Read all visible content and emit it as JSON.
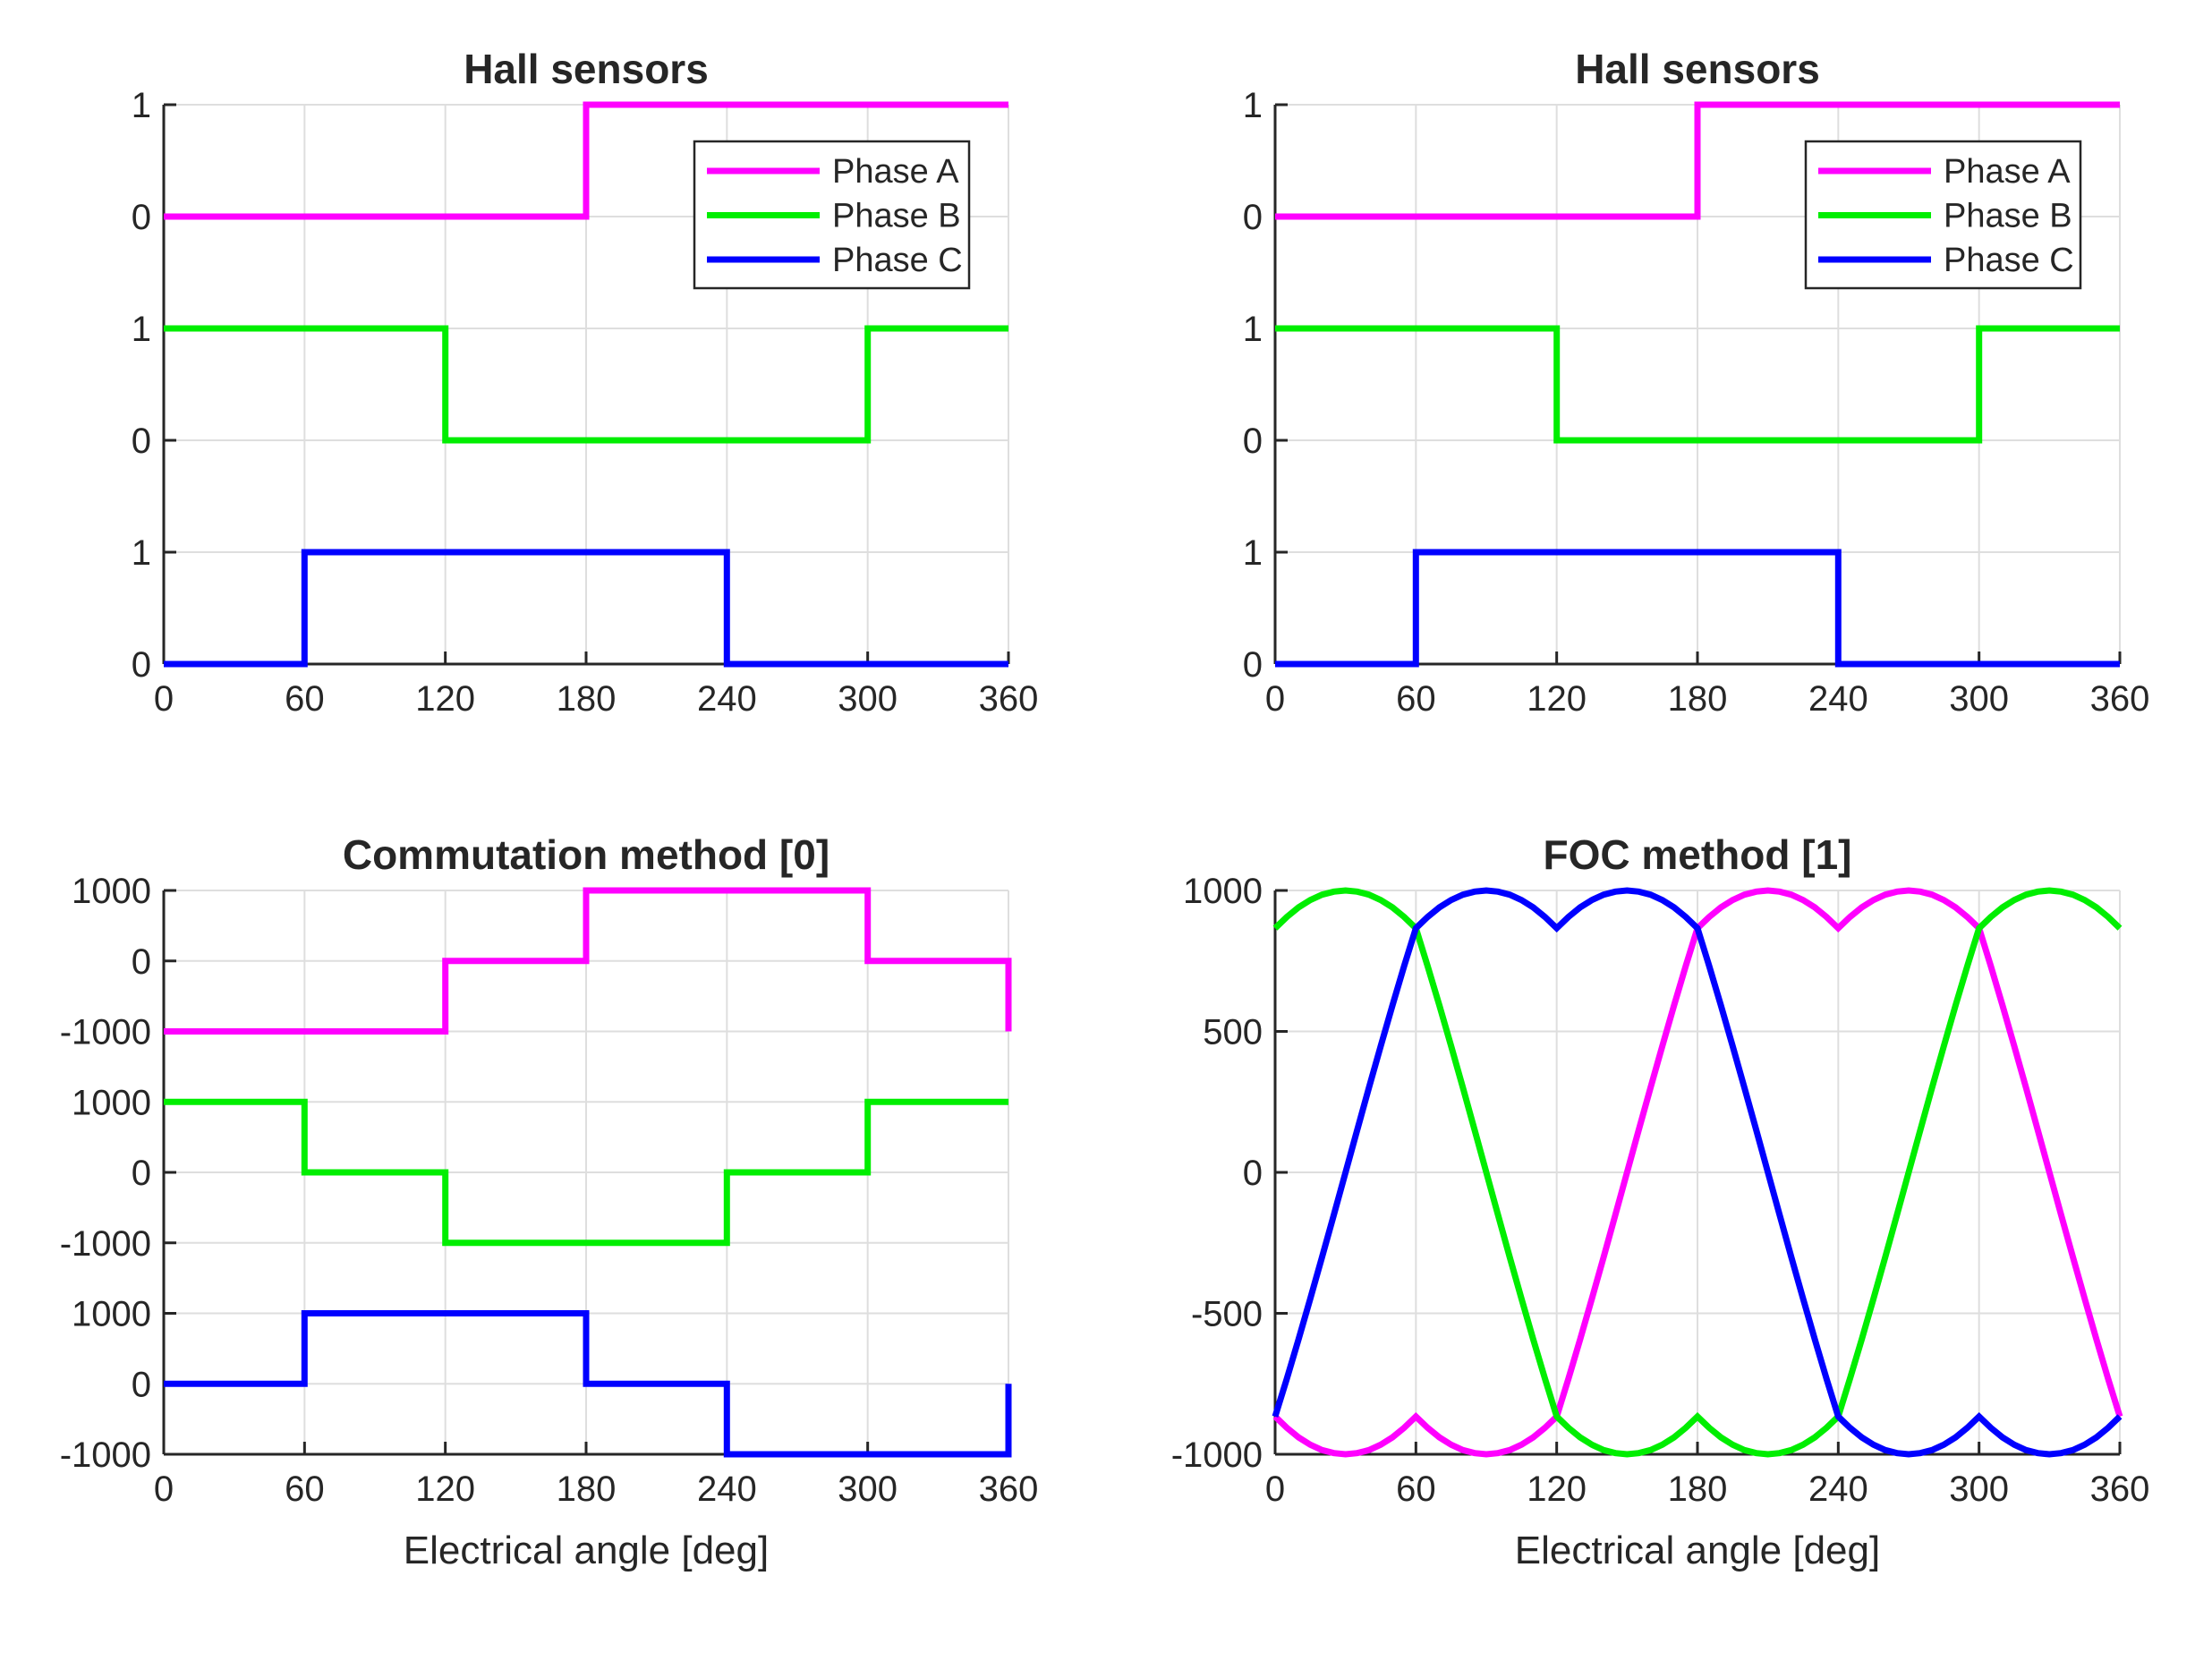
{
  "figure": {
    "background": "#FFFFFF"
  },
  "styles": {
    "axis_color": "#262626",
    "grid_color": "#DEDEDE",
    "phase_a_color": "#FF00FF",
    "phase_b_color": "#00EE00",
    "phase_c_color": "#0000FF",
    "legend_border_color": "#262626",
    "legend_background": "#FFFFFF"
  },
  "chart_data": [
    {
      "id": "hall-sensors-left",
      "type": "line",
      "title": "Hall sensors",
      "xlabel": "",
      "xlim": [
        0,
        360
      ],
      "x_ticks": [
        0,
        60,
        120,
        180,
        240,
        300,
        360
      ],
      "y_axis": {
        "lim": [
          0,
          5
        ],
        "ticks": [
          {
            "pos": 5,
            "label": "1"
          },
          {
            "pos": 4,
            "label": "0"
          },
          {
            "pos": 3,
            "label": "1"
          },
          {
            "pos": 2,
            "label": "0"
          },
          {
            "pos": 1,
            "label": "1"
          },
          {
            "pos": 0,
            "label": "0"
          }
        ]
      },
      "grid": true,
      "legend": {
        "visible": true,
        "position": "upper-right",
        "entries": [
          "Phase A",
          "Phase B",
          "Phase C"
        ]
      },
      "series": [
        {
          "name": "Phase A",
          "color": "#FF00FF",
          "band_offset": 4,
          "value_scale": 1,
          "points": [
            [
              0,
              0
            ],
            [
              180,
              0
            ],
            [
              180,
              1
            ],
            [
              360,
              1
            ]
          ]
        },
        {
          "name": "Phase B",
          "color": "#00EE00",
          "band_offset": 2,
          "value_scale": 1,
          "points": [
            [
              0,
              1
            ],
            [
              120,
              1
            ],
            [
              120,
              0
            ],
            [
              300,
              0
            ],
            [
              300,
              1
            ],
            [
              360,
              1
            ]
          ]
        },
        {
          "name": "Phase C",
          "color": "#0000FF",
          "band_offset": 0,
          "value_scale": 1,
          "points": [
            [
              0,
              0
            ],
            [
              60,
              0
            ],
            [
              60,
              1
            ],
            [
              240,
              1
            ],
            [
              240,
              0
            ],
            [
              360,
              0
            ]
          ]
        }
      ]
    },
    {
      "id": "hall-sensors-right",
      "type": "line",
      "title": "Hall sensors",
      "xlabel": "",
      "xlim": [
        0,
        360
      ],
      "x_ticks": [
        0,
        60,
        120,
        180,
        240,
        300,
        360
      ],
      "y_axis": {
        "lim": [
          0,
          5
        ],
        "ticks": [
          {
            "pos": 5,
            "label": "1"
          },
          {
            "pos": 4,
            "label": "0"
          },
          {
            "pos": 3,
            "label": "1"
          },
          {
            "pos": 2,
            "label": "0"
          },
          {
            "pos": 1,
            "label": "1"
          },
          {
            "pos": 0,
            "label": "0"
          }
        ]
      },
      "grid": true,
      "legend": {
        "visible": true,
        "position": "upper-right",
        "entries": [
          "Phase A",
          "Phase B",
          "Phase C"
        ]
      },
      "series": [
        {
          "name": "Phase A",
          "color": "#FF00FF",
          "band_offset": 4,
          "value_scale": 1,
          "points": [
            [
              0,
              0
            ],
            [
              180,
              0
            ],
            [
              180,
              1
            ],
            [
              360,
              1
            ]
          ]
        },
        {
          "name": "Phase B",
          "color": "#00EE00",
          "band_offset": 2,
          "value_scale": 1,
          "points": [
            [
              0,
              1
            ],
            [
              120,
              1
            ],
            [
              120,
              0
            ],
            [
              300,
              0
            ],
            [
              300,
              1
            ],
            [
              360,
              1
            ]
          ]
        },
        {
          "name": "Phase C",
          "color": "#0000FF",
          "band_offset": 0,
          "value_scale": 1,
          "points": [
            [
              0,
              0
            ],
            [
              60,
              0
            ],
            [
              60,
              1
            ],
            [
              240,
              1
            ],
            [
              240,
              0
            ],
            [
              360,
              0
            ]
          ]
        }
      ]
    },
    {
      "id": "commutation-method",
      "type": "line",
      "title": "Commutation method [0]",
      "xlabel": "Electrical angle [deg]",
      "xlim": [
        0,
        360
      ],
      "x_ticks": [
        0,
        60,
        120,
        180,
        240,
        300,
        360
      ],
      "y_axis": {
        "lim": [
          0,
          8
        ],
        "ticks": [
          {
            "pos": 8,
            "label": "1000"
          },
          {
            "pos": 7,
            "label": "0"
          },
          {
            "pos": 6,
            "label": "-1000"
          },
          {
            "pos": 5,
            "label": "1000"
          },
          {
            "pos": 4,
            "label": "0"
          },
          {
            "pos": 3,
            "label": "-1000"
          },
          {
            "pos": 2,
            "label": "1000"
          },
          {
            "pos": 1,
            "label": "0"
          },
          {
            "pos": 0,
            "label": "-1000"
          }
        ]
      },
      "grid": true,
      "legend": {
        "visible": false,
        "entries": []
      },
      "series": [
        {
          "name": "Phase A",
          "color": "#FF00FF",
          "band_offset": 7,
          "value_scale": 0.001,
          "points": [
            [
              0,
              -1000
            ],
            [
              120,
              -1000
            ],
            [
              120,
              0
            ],
            [
              180,
              0
            ],
            [
              180,
              1000
            ],
            [
              300,
              1000
            ],
            [
              300,
              0
            ],
            [
              360,
              0
            ],
            [
              360,
              -1000
            ]
          ]
        },
        {
          "name": "Phase B",
          "color": "#00EE00",
          "band_offset": 4,
          "value_scale": 0.001,
          "points": [
            [
              0,
              1000
            ],
            [
              60,
              1000
            ],
            [
              60,
              0
            ],
            [
              120,
              0
            ],
            [
              120,
              -1000
            ],
            [
              240,
              -1000
            ],
            [
              240,
              0
            ],
            [
              300,
              0
            ],
            [
              300,
              1000
            ],
            [
              360,
              1000
            ]
          ]
        },
        {
          "name": "Phase C",
          "color": "#0000FF",
          "band_offset": 1,
          "value_scale": 0.001,
          "points": [
            [
              0,
              0
            ],
            [
              60,
              0
            ],
            [
              60,
              1000
            ],
            [
              180,
              1000
            ],
            [
              180,
              0
            ],
            [
              240,
              0
            ],
            [
              240,
              -1000
            ],
            [
              360,
              -1000
            ],
            [
              360,
              0
            ]
          ]
        }
      ]
    },
    {
      "id": "foc-method",
      "type": "line",
      "title": "FOC method [1]",
      "xlabel": "Electrical angle [deg]",
      "xlim": [
        0,
        360
      ],
      "x_ticks": [
        0,
        60,
        120,
        180,
        240,
        300,
        360
      ],
      "y_axis": {
        "lim": [
          -1000,
          1000
        ],
        "ticks": [
          {
            "pos": 1000,
            "label": "1000"
          },
          {
            "pos": 500,
            "label": "500"
          },
          {
            "pos": 0,
            "label": "0"
          },
          {
            "pos": -500,
            "label": "-500"
          },
          {
            "pos": -1000,
            "label": "-1000"
          }
        ]
      },
      "grid": true,
      "legend": {
        "visible": false,
        "entries": []
      },
      "series": [
        {
          "name": "Phase A",
          "color": "#FF00FF",
          "band_offset": 0,
          "value_scale": 1,
          "x_start": 0,
          "x_step": 5,
          "values": [
            -866,
            -906,
            -940,
            -966,
            -985,
            -996,
            -1000,
            -996,
            -985,
            -966,
            -940,
            -906,
            -866,
            -906,
            -940,
            -966,
            -985,
            -996,
            -1000,
            -996,
            -985,
            -966,
            -940,
            -906,
            -866,
            -732,
            -592,
            -448,
            -301,
            -151,
            0,
            151,
            301,
            448,
            592,
            732,
            866,
            906,
            940,
            966,
            985,
            996,
            1000,
            996,
            985,
            966,
            940,
            906,
            866,
            906,
            940,
            966,
            985,
            996,
            1000,
            996,
            985,
            966,
            940,
            906,
            866,
            732,
            592,
            448,
            301,
            151,
            0,
            -151,
            -301,
            -448,
            -592,
            -732,
            -866
          ]
        },
        {
          "name": "Phase B",
          "color": "#00EE00",
          "band_offset": 0,
          "value_scale": 1,
          "x_start": 0,
          "x_step": 5,
          "values": [
            866,
            906,
            940,
            966,
            985,
            996,
            1000,
            996,
            985,
            966,
            940,
            906,
            866,
            732,
            592,
            448,
            301,
            151,
            0,
            -151,
            -301,
            -448,
            -592,
            -732,
            -866,
            -906,
            -940,
            -966,
            -985,
            -996,
            -1000,
            -996,
            -985,
            -966,
            -940,
            -906,
            -866,
            -906,
            -940,
            -966,
            -985,
            -996,
            -1000,
            -996,
            -985,
            -966,
            -940,
            -906,
            -866,
            -732,
            -592,
            -448,
            -301,
            -151,
            0,
            151,
            301,
            448,
            592,
            732,
            866,
            906,
            940,
            966,
            985,
            996,
            1000,
            996,
            985,
            966,
            940,
            906,
            866
          ]
        },
        {
          "name": "Phase C",
          "color": "#0000FF",
          "band_offset": 0,
          "value_scale": 1,
          "x_start": 0,
          "x_step": 5,
          "values": [
            -866,
            -732,
            -592,
            -448,
            -301,
            -151,
            0,
            151,
            301,
            448,
            592,
            732,
            866,
            906,
            940,
            966,
            985,
            996,
            1000,
            996,
            985,
            966,
            940,
            906,
            866,
            906,
            940,
            966,
            985,
            996,
            1000,
            996,
            985,
            966,
            940,
            906,
            866,
            732,
            592,
            448,
            301,
            151,
            0,
            -151,
            -301,
            -448,
            -592,
            -732,
            -866,
            -906,
            -940,
            -966,
            -985,
            -996,
            -1000,
            -996,
            -985,
            -966,
            -940,
            -906,
            -866,
            -906,
            -940,
            -966,
            -985,
            -996,
            -1000,
            -996,
            -985,
            -966,
            -940,
            -906,
            -866
          ]
        }
      ]
    }
  ]
}
